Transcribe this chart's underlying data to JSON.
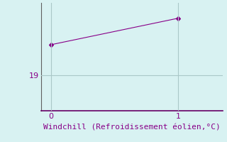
{
  "x": [
    0,
    1
  ],
  "y": [
    19.7,
    20.3
  ],
  "xlim": [
    -0.08,
    1.35
  ],
  "ylim": [
    18.2,
    20.65
  ],
  "yticks": [
    19
  ],
  "xticks": [
    0,
    1
  ],
  "line_color": "#880088",
  "marker": "D",
  "marker_size": 3,
  "background_color": "#d8f2f2",
  "grid_color": "#aac8c8",
  "xlabel": "Windchill (Refroidissement éolien,°C)",
  "xlabel_fontsize": 8,
  "tick_color": "#880088",
  "tick_fontsize": 8,
  "spine_color": "#606060",
  "bottom_spine_color": "#660066",
  "left_spine_color": "#606060"
}
